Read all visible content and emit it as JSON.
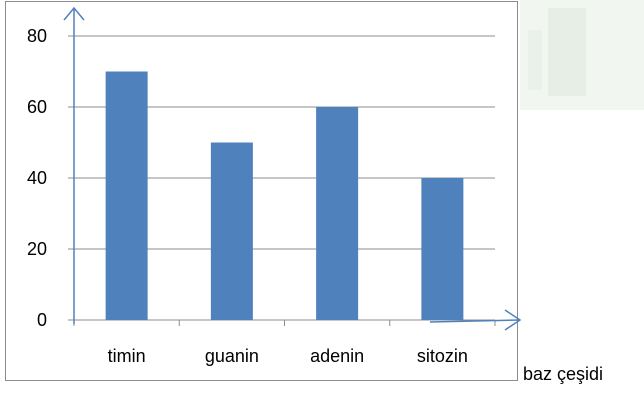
{
  "chart_data": {
    "type": "bar",
    "categories": [
      "timin",
      "guanin",
      "adenin",
      "sitozin"
    ],
    "values": [
      70,
      50,
      60,
      40
    ],
    "title": "",
    "xlabel": "baz çeşidi",
    "ylabel": "",
    "ylim": [
      0,
      80
    ],
    "yticks": [
      0,
      20,
      40,
      60,
      80
    ],
    "grid": true,
    "legend": "none"
  },
  "colors": {
    "bar": "#4f81bd",
    "axis_arrow": "#4f81bd",
    "gridline": "#8c8c8c",
    "tick_text": "#000000",
    "background_wash": "#eef5ee"
  }
}
